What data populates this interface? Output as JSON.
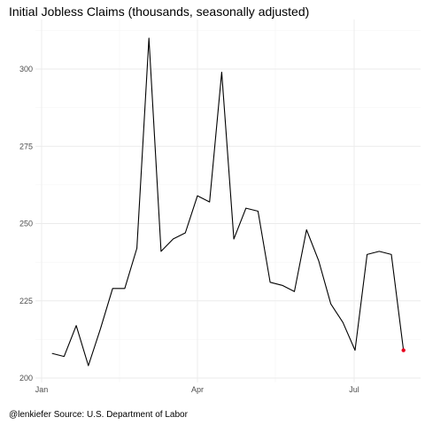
{
  "chart_data": {
    "type": "line",
    "title": "Initial Jobless Claims (thousands, seasonally adjusted)",
    "caption": "@lenkiefer Source: U.S. Department of Labor",
    "xlabel": "",
    "ylabel": "",
    "x_tick_labels": [
      "Jan",
      "Apr",
      "Jul"
    ],
    "y_ticks": [
      200,
      225,
      250,
      275,
      300
    ],
    "ylim": [
      199,
      314
    ],
    "grid": true,
    "line_color": "#000000",
    "highlight_color": "#e8001c",
    "x": [
      "2017-01-07",
      "2017-01-14",
      "2017-01-21",
      "2017-01-28",
      "2017-02-04",
      "2017-02-11",
      "2017-02-18",
      "2017-02-25",
      "2017-03-04",
      "2017-03-11",
      "2017-03-18",
      "2017-03-25",
      "2017-04-01",
      "2017-04-08",
      "2017-04-15",
      "2017-04-22",
      "2017-04-29",
      "2017-05-06",
      "2017-05-13",
      "2017-05-20",
      "2017-05-27",
      "2017-06-03",
      "2017-06-10",
      "2017-06-17",
      "2017-06-24",
      "2017-07-01",
      "2017-07-08",
      "2017-07-15",
      "2017-07-22",
      "2017-07-29"
    ],
    "values": [
      208,
      207,
      217,
      204,
      216,
      229,
      229,
      242,
      310,
      241,
      245,
      247,
      259,
      257,
      299,
      245,
      255,
      254,
      231,
      230,
      228,
      248,
      238,
      224,
      218,
      209,
      240,
      241,
      240,
      209
    ]
  }
}
